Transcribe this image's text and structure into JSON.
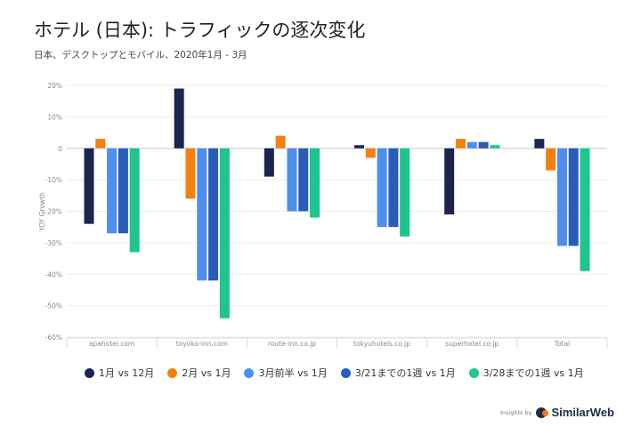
{
  "page": {
    "title": "ホテル (日本): トラフィックの逐次変化",
    "subtitle": "日本、デスクトップとモバイル、2020年1月 - 3月"
  },
  "brand": {
    "insights_text": "Insights by",
    "name": "SimilarWeb"
  },
  "chart_data": {
    "type": "bar",
    "title": "ホテル (日本): トラフィックの逐次変化",
    "subtitle": "日本、デスクトップとモバイル、2020年1月 - 3月",
    "xlabel": "",
    "ylabel": "YOY Growth",
    "ylim": [
      -60,
      20
    ],
    "yticks": [
      20,
      10,
      0,
      -10,
      -20,
      -30,
      -40,
      -50,
      -60
    ],
    "ytick_labels": [
      "20%",
      "10%",
      "0",
      "-10%",
      "-20%",
      "-30%",
      "-40%",
      "-50%",
      "-60%"
    ],
    "grid": true,
    "legend_position": "bottom",
    "categories": [
      "apahotel.com",
      "toyoko-inn.com",
      "route-inn.co.jp",
      "tokyuhotels.co.jp",
      "superhotel.co.jp",
      "Total"
    ],
    "series": [
      {
        "name": "1月 vs 12月",
        "color": "#1b2550",
        "values": [
          -24,
          19,
          -9,
          1,
          -21,
          3
        ]
      },
      {
        "name": "2月 vs 1月",
        "color": "#f5800f",
        "values": [
          3,
          -16,
          4,
          -3,
          3,
          -7
        ]
      },
      {
        "name": "3月前半 vs 1月",
        "color": "#4e8fee",
        "values": [
          -27,
          -42,
          -20,
          -25,
          2,
          -31
        ]
      },
      {
        "name": "3/21までの1週 vs 1月",
        "color": "#2a5cb8",
        "values": [
          -27,
          -42,
          -20,
          -25,
          2,
          -31
        ]
      },
      {
        "name": "3/28までの1週 vs 1月",
        "color": "#1fc48e",
        "values": [
          -33,
          -54,
          -22,
          -28,
          1,
          -39
        ]
      }
    ]
  }
}
